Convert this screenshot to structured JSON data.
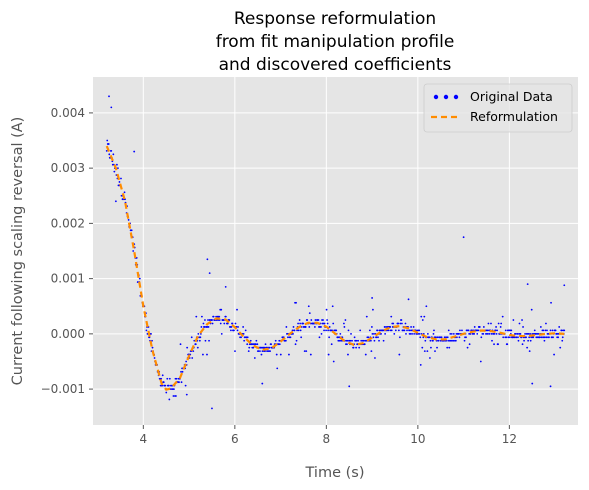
{
  "colors": {
    "panel_background": "#e5e5e5",
    "grid": "#ffffff",
    "original_data": "#0000ff",
    "reformulation": "#ff8c00"
  },
  "chart_data": {
    "type": "scatter",
    "title": [
      "Response reformulation",
      "from fit manipulation profile",
      "and discovered coefficients"
    ],
    "xlabel": "Time (s)",
    "ylabel": "Current following scaling reversal (A)",
    "xlim": [
      2.9,
      13.5
    ],
    "ylim": [
      -0.00165,
      0.00465
    ],
    "xticks": [
      4,
      6,
      8,
      10,
      12
    ],
    "xtick_labels": [
      "4",
      "6",
      "8",
      "10",
      "12"
    ],
    "yticks": [
      -0.001,
      0.0,
      0.001,
      0.002,
      0.003,
      0.004
    ],
    "ytick_labels": [
      "−0.001",
      "0.000",
      "0.001",
      "0.002",
      "0.003",
      "0.004"
    ],
    "grid": true,
    "legend_position": "top-right",
    "series": [
      {
        "name": "Original Data",
        "style": "dots",
        "x_range": [
          3.2,
          13.2
        ],
        "n_points": 900,
        "outliers": [
          {
            "x": 3.25,
            "y": 0.0043
          },
          {
            "x": 3.3,
            "y": 0.0041
          },
          {
            "x": 3.4,
            "y": 0.0024
          },
          {
            "x": 3.8,
            "y": 0.0033
          },
          {
            "x": 5.4,
            "y": 0.00135
          },
          {
            "x": 5.45,
            "y": 0.0011
          },
          {
            "x": 5.5,
            "y": -0.00135
          },
          {
            "x": 4.95,
            "y": -0.0011
          },
          {
            "x": 11.0,
            "y": 0.00175
          },
          {
            "x": 12.4,
            "y": 0.0009
          },
          {
            "x": 13.2,
            "y": 0.00088
          },
          {
            "x": 12.5,
            "y": -0.0009
          },
          {
            "x": 12.9,
            "y": -0.00095
          },
          {
            "x": 8.5,
            "y": -0.00095
          },
          {
            "x": 6.6,
            "y": -0.0009
          },
          {
            "x": 5.8,
            "y": 0.00085
          },
          {
            "x": 9.0,
            "y": 0.00065
          }
        ]
      },
      {
        "name": "Reformulation",
        "style": "dashed-line",
        "x": [
          3.2,
          3.4,
          3.6,
          3.8,
          4.0,
          4.2,
          4.4,
          4.5,
          4.6,
          4.8,
          5.0,
          5.2,
          5.4,
          5.6,
          5.8,
          6.0,
          6.2,
          6.4,
          6.6,
          6.8,
          7.0,
          7.2,
          7.4,
          7.6,
          7.8,
          8.0,
          8.2,
          8.4,
          8.6,
          8.8,
          9.0,
          9.2,
          9.4,
          9.6,
          9.8,
          10.0,
          10.2,
          10.4,
          10.6,
          10.8,
          11.0,
          11.2,
          11.4,
          11.6,
          11.8,
          12.0,
          12.2,
          12.4,
          12.6,
          12.8,
          13.0,
          13.2
        ],
        "y": [
          0.0034,
          0.003,
          0.0024,
          0.0015,
          0.0005,
          -0.0003,
          -0.0009,
          -0.00101,
          -0.00099,
          -0.0008,
          -0.0004,
          -3e-05,
          0.00018,
          0.00028,
          0.00026,
          0.00012,
          -6e-05,
          -0.00021,
          -0.00029,
          -0.00026,
          -0.00014,
          0.0,
          0.00012,
          0.0002,
          0.0002,
          0.00013,
          0.0,
          -0.00013,
          -0.0002,
          -0.00017,
          -7e-05,
          4e-05,
          0.00012,
          0.00014,
          0.0001,
          2e-05,
          -6e-05,
          -0.0001,
          -0.0001,
          -5e-05,
          0.0,
          4e-05,
          6e-05,
          5e-05,
          2e-05,
          -2e-05,
          -4e-05,
          -4e-05,
          -2e-05,
          0.0,
          1e-05,
          0.0
        ]
      }
    ]
  }
}
